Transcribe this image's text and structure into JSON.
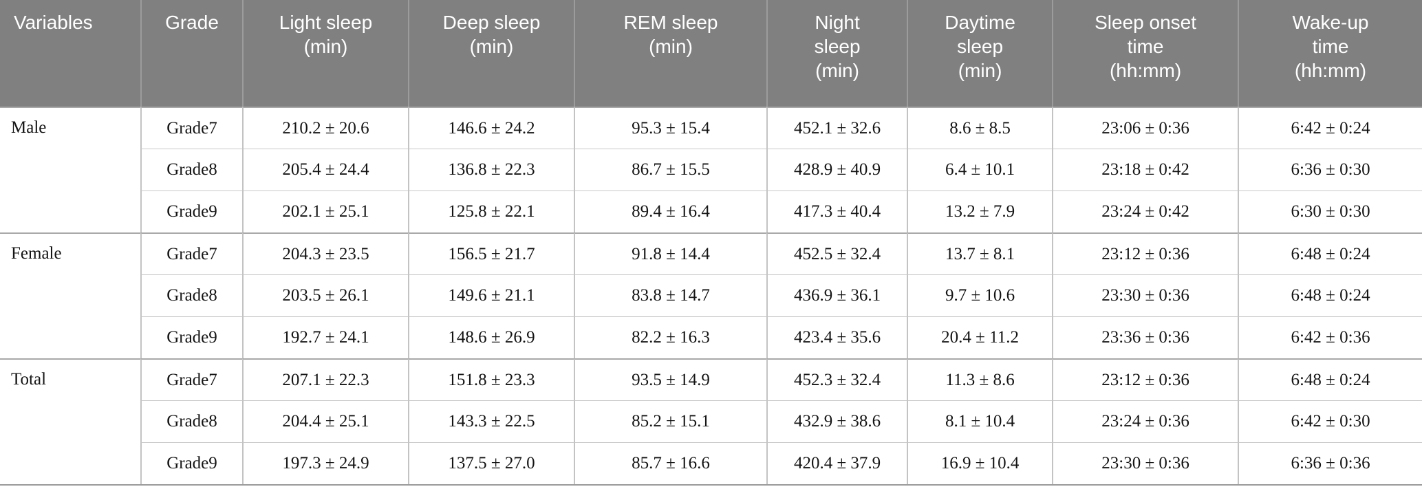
{
  "colors": {
    "header_bg": "#808080",
    "header_text": "#ffffff",
    "header_separator": "#9c9c9c",
    "group_line": "#a8a8a8",
    "row_line": "#c7c7c7",
    "body_text": "#141414"
  },
  "table": {
    "columns": [
      "Variables",
      "Grade",
      "Light sleep\n(min)",
      "Deep sleep\n(min)",
      "REM sleep\n(min)",
      "Night\nsleep\n(min)",
      "Daytime\nsleep\n(min)",
      "Sleep onset\ntime\n(hh:mm)",
      "Wake-up\ntime\n(hh:mm)"
    ],
    "groups": [
      {
        "variable": "Male",
        "rows": [
          {
            "grade": "Grade7",
            "values": [
              "210.2 ± 20.6",
              "146.6 ± 24.2",
              "95.3 ± 15.4",
              "452.1 ± 32.6",
              "8.6 ± 8.5",
              "23:06 ± 0:36",
              "6:42 ± 0:24"
            ]
          },
          {
            "grade": "Grade8",
            "values": [
              "205.4 ± 24.4",
              "136.8 ± 22.3",
              "86.7 ± 15.5",
              "428.9 ± 40.9",
              "6.4 ± 10.1",
              "23:18 ± 0:42",
              "6:36 ± 0:30"
            ]
          },
          {
            "grade": "Grade9",
            "values": [
              "202.1 ± 25.1",
              "125.8 ± 22.1",
              "89.4 ± 16.4",
              "417.3 ± 40.4",
              "13.2 ± 7.9",
              "23:24 ± 0:42",
              "6:30 ± 0:30"
            ]
          }
        ]
      },
      {
        "variable": "Female",
        "rows": [
          {
            "grade": "Grade7",
            "values": [
              "204.3 ± 23.5",
              "156.5 ± 21.7",
              "91.8 ± 14.4",
              "452.5 ± 32.4",
              "13.7 ± 8.1",
              "23:12 ± 0:36",
              "6:48 ± 0:24"
            ]
          },
          {
            "grade": "Grade8",
            "values": [
              "203.5 ± 26.1",
              "149.6 ± 21.1",
              "83.8 ± 14.7",
              "436.9 ± 36.1",
              "9.7 ± 10.6",
              "23:30 ± 0:36",
              "6:48 ± 0:24"
            ]
          },
          {
            "grade": "Grade9",
            "values": [
              "192.7 ± 24.1",
              "148.6 ± 26.9",
              "82.2 ± 16.3",
              "423.4 ± 35.6",
              "20.4 ± 11.2",
              "23:36 ± 0:36",
              "6:42 ± 0:36"
            ]
          }
        ]
      },
      {
        "variable": "Total",
        "rows": [
          {
            "grade": "Grade7",
            "values": [
              "207.1 ± 22.3",
              "151.8 ± 23.3",
              "93.5 ± 14.9",
              "452.3 ± 32.4",
              "11.3 ± 8.6",
              "23:12 ± 0:36",
              "6:48 ± 0:24"
            ]
          },
          {
            "grade": "Grade8",
            "values": [
              "204.4 ± 25.1",
              "143.3 ± 22.5",
              "85.2 ± 15.1",
              "432.9 ± 38.6",
              "8.1 ± 10.4",
              "23:24 ± 0:36",
              "6:42 ± 0:30"
            ]
          },
          {
            "grade": "Grade9",
            "values": [
              "197.3 ± 24.9",
              "137.5 ± 27.0",
              "85.7 ± 16.6",
              "420.4 ± 37.9",
              "16.9 ± 10.4",
              "23:30 ± 0:36",
              "6:36 ± 0:36"
            ]
          }
        ]
      }
    ]
  }
}
